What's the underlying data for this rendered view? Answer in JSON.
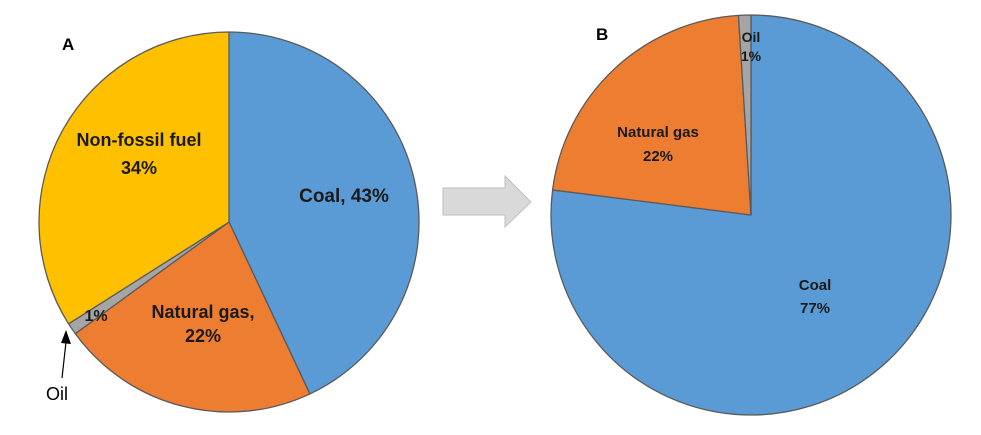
{
  "chart_data": [
    {
      "type": "pie",
      "panel_label": "A",
      "slices": [
        {
          "name": "Coal",
          "value": 43,
          "color": "#5b9bd5",
          "label_lines": [
            "Coal, 43%"
          ]
        },
        {
          "name": "Natural gas",
          "value": 22,
          "color": "#ed7d31",
          "label_lines": [
            "Natural gas,",
            "22%"
          ]
        },
        {
          "name": "Oil",
          "value": 1,
          "color": "#a5a5a5",
          "label_lines": [
            "1%"
          ]
        },
        {
          "name": "Non-fossil fuel",
          "value": 34,
          "color": "#ffc000",
          "label_lines": [
            "Non-fossil fuel",
            "34%"
          ]
        }
      ],
      "callout_text": "Oil"
    },
    {
      "type": "pie",
      "panel_label": "B",
      "slices": [
        {
          "name": "Coal",
          "value": 77,
          "color": "#5b9bd5",
          "label_lines": [
            "Coal",
            "77%"
          ]
        },
        {
          "name": "Natural gas",
          "value": 22,
          "color": "#ed7d31",
          "label_lines": [
            "Natural gas",
            "22%"
          ]
        },
        {
          "name": "Oil",
          "value": 1,
          "color": "#a5a5a5",
          "label_lines": [
            "Oil",
            "1%"
          ]
        }
      ]
    }
  ],
  "arrow_color": "#d9d9d9"
}
